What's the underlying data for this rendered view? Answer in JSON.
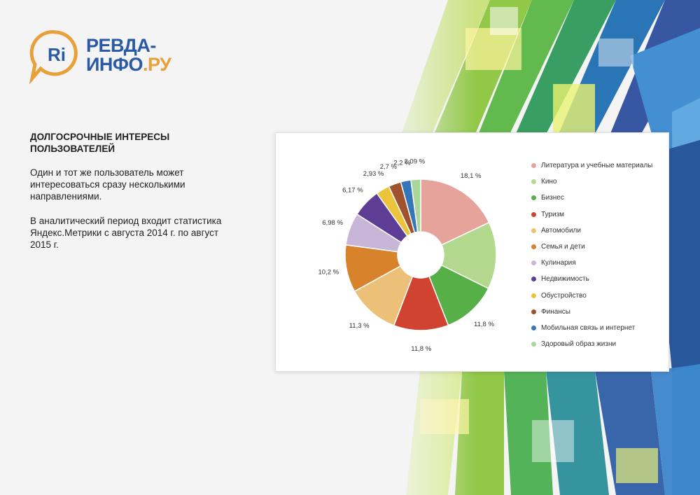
{
  "logo": {
    "badge_text": "Ri",
    "line1": "РЕВДА-",
    "line2": "ИНФО",
    "line2_suffix": ".РУ"
  },
  "heading": "ДОЛГОСРОЧНЫЕ ИНТЕРЕСЫ ПОЛЬЗОВАТЕЛЕЙ",
  "paragraph1": "Один и тот же пользователь может интересоваться сразу несколькими направлениями.",
  "paragraph2": "В аналитический период входит статистика Яндекс.Метрики с августа 2014 г. по август 2015 г.",
  "colors": {
    "logo_blue": "#2a5aa3",
    "logo_orange": "#e8a13a",
    "slices": [
      "#e5a39c",
      "#b3d98f",
      "#56b047",
      "#cf4330",
      "#ecc079",
      "#d9822c",
      "#c8b6d9",
      "#5e3e94",
      "#ebc43b",
      "#a0522d",
      "#3576b8",
      "#a9d79a"
    ]
  },
  "chart_data": {
    "type": "pie",
    "donut": true,
    "title": "",
    "legend_position": "right",
    "categories": [
      "Литература и учебные материалы",
      "Кино",
      "Бизнес",
      "Туризм",
      "Автомобили",
      "Семья и дети",
      "Кулинария",
      "Недвижимость",
      "Обустройство",
      "Финансы",
      "Мобильная связь и интернет",
      "Здоровый образ жизни"
    ],
    "values": [
      18.1,
      14.5,
      11.8,
      11.8,
      11.3,
      10.2,
      6.98,
      6.17,
      2.93,
      2.7,
      2.2,
      2.09
    ],
    "labels": [
      "18,1 %",
      "",
      "11,8 %",
      "11,8 %",
      "11,3 %",
      "10,2 %",
      "6,98 %",
      "6,17 %",
      "2,93 %",
      "2,7 %",
      "2,2 %",
      "2,09 %"
    ],
    "unit": "%"
  }
}
